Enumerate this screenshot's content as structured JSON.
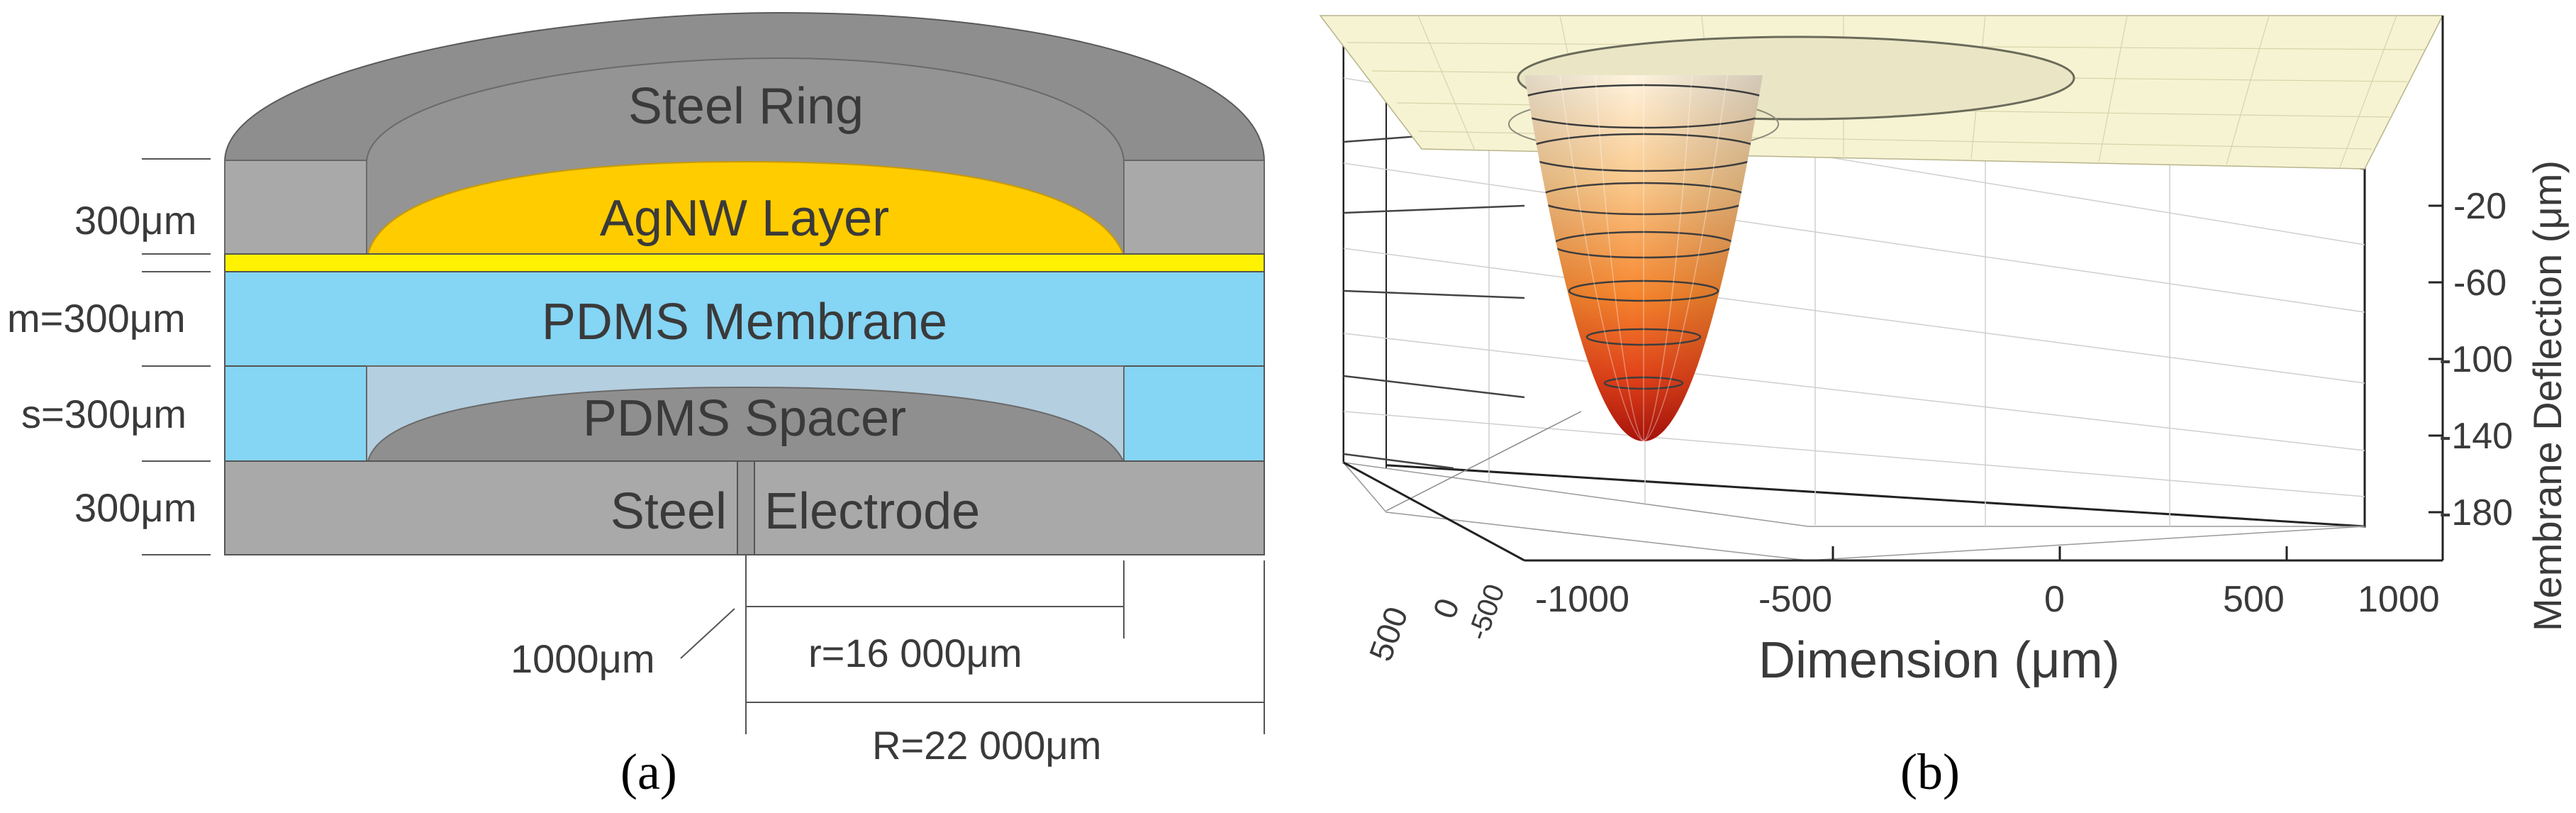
{
  "panel_a": {
    "caption": "(a)",
    "layers": {
      "steel_ring": "Steel Ring",
      "agnw": "AgNW Layer",
      "membrane": "PDMS Membrane",
      "spacer": "PDMS Spacer",
      "steel": "Steel",
      "electrode": "Electrode"
    },
    "dimensions": {
      "top_layer": "300μm",
      "membrane": "m=300μm",
      "spacer": "s=300μm",
      "bottom_layer": "300μm",
      "gap": "1000μm",
      "inner_radius": "r=16 000μm",
      "outer_radius": "R=22 000μm"
    },
    "colors": {
      "steel_dark": "#8c8c8c",
      "steel_light": "#a9a9a9",
      "agnw": "#ffcc00",
      "agnw_line": "#fff200",
      "pdms": "#85d5f5",
      "spacer_light": "#b4cfe0"
    }
  },
  "panel_b": {
    "caption": "(b)",
    "chart_data": {
      "type": "surface",
      "xlabel": "Dimension (μm)",
      "zlabel": "Membrane Deflection (μm)",
      "x_ticks": [
        "-1000",
        "-500",
        "0",
        "500",
        "1000"
      ],
      "y_ticks": [
        "500",
        "0",
        "-500"
      ],
      "z_ticks": [
        "-20",
        "-60",
        "-100",
        "-140",
        "-180"
      ],
      "z_min": -140,
      "colors": {
        "top": "#fff2d6",
        "mid": "#f7862e",
        "bottom": "#b7150a",
        "plane": "#f6f3d3"
      }
    }
  }
}
